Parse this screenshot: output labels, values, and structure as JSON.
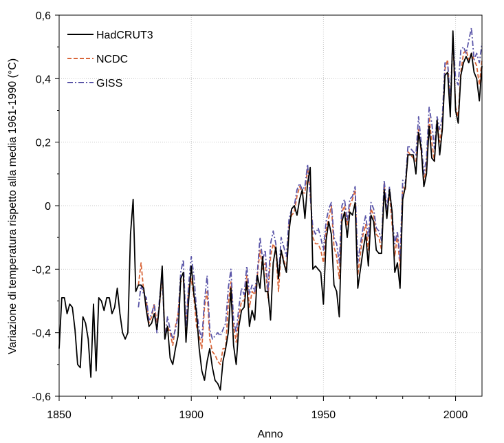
{
  "chart_data": {
    "type": "line",
    "title": "",
    "xlabel": "Anno",
    "ylabel": "Variazione di temperatura rispetto alla media 1961-1990 (°C)",
    "xlim": [
      1850,
      2010
    ],
    "ylim": [
      -0.6,
      0.6
    ],
    "x_ticks": [
      1850,
      1900,
      1950,
      2000
    ],
    "x_tick_labels": [
      "1850",
      "1900",
      "1950",
      "2000"
    ],
    "y_ticks": [
      -0.6,
      -0.4,
      -0.2,
      0,
      0.2,
      0.4,
      0.6
    ],
    "y_tick_labels": [
      "-0,6",
      "-0,4",
      "-0,2",
      "0",
      "0,2",
      "0,4",
      "0,6"
    ],
    "grid": true,
    "legend_position": "top-left",
    "series": [
      {
        "name": "HadCRUT3",
        "color": "#000000",
        "dash": "solid",
        "x_start": 1850,
        "values": [
          -0.45,
          -0.29,
          -0.29,
          -0.34,
          -0.31,
          -0.32,
          -0.39,
          -0.5,
          -0.51,
          -0.35,
          -0.37,
          -0.42,
          -0.54,
          -0.31,
          -0.52,
          -0.29,
          -0.3,
          -0.33,
          -0.29,
          -0.29,
          -0.34,
          -0.32,
          -0.26,
          -0.34,
          -0.4,
          -0.42,
          -0.4,
          -0.09,
          0.02,
          -0.27,
          -0.25,
          -0.25,
          -0.26,
          -0.33,
          -0.38,
          -0.37,
          -0.34,
          -0.39,
          -0.31,
          -0.19,
          -0.42,
          -0.38,
          -0.48,
          -0.5,
          -0.45,
          -0.41,
          -0.23,
          -0.21,
          -0.43,
          -0.3,
          -0.19,
          -0.28,
          -0.34,
          -0.45,
          -0.52,
          -0.55,
          -0.49,
          -0.45,
          -0.51,
          -0.55,
          -0.56,
          -0.58,
          -0.49,
          -0.45,
          -0.4,
          -0.26,
          -0.44,
          -0.5,
          -0.38,
          -0.33,
          -0.32,
          -0.24,
          -0.38,
          -0.33,
          -0.36,
          -0.22,
          -0.26,
          -0.16,
          -0.27,
          -0.27,
          -0.36,
          -0.18,
          -0.13,
          -0.23,
          -0.14,
          -0.18,
          -0.21,
          -0.08,
          -0.01,
          0.0,
          -0.03,
          0.02,
          0.05,
          -0.04,
          0.07,
          0.12,
          -0.2,
          -0.19,
          -0.2,
          -0.21,
          -0.31,
          -0.11,
          -0.05,
          -0.09,
          -0.25,
          -0.27,
          -0.35,
          -0.05,
          -0.02,
          -0.1,
          -0.02,
          -0.03,
          0.01,
          -0.26,
          -0.2,
          -0.14,
          -0.09,
          -0.19,
          -0.03,
          -0.05,
          -0.14,
          -0.15,
          -0.15,
          0.05,
          -0.04,
          0.05,
          -0.02,
          -0.21,
          -0.18,
          -0.26,
          0.02,
          0.06,
          0.16,
          0.16,
          0.16,
          0.1,
          0.23,
          0.18,
          0.06,
          0.1,
          0.25,
          0.15,
          0.14,
          0.27,
          0.16,
          0.24,
          0.41,
          0.42,
          0.28,
          0.55,
          0.3,
          0.26,
          0.41,
          0.45,
          0.47,
          0.45,
          0.48,
          0.42,
          0.4,
          0.33,
          0.44
        ]
      },
      {
        "name": "NCDC",
        "color": "#d9663a",
        "dash": "dashed",
        "x_start": 1880,
        "values": [
          -0.25,
          -0.18,
          -0.27,
          -0.3,
          -0.37,
          -0.35,
          -0.31,
          -0.37,
          -0.31,
          -0.22,
          -0.4,
          -0.38,
          -0.4,
          -0.44,
          -0.38,
          -0.34,
          -0.24,
          -0.23,
          -0.39,
          -0.26,
          -0.23,
          -0.29,
          -0.38,
          -0.41,
          -0.45,
          -0.32,
          -0.27,
          -0.42,
          -0.46,
          -0.47,
          -0.49,
          -0.5,
          -0.45,
          -0.45,
          -0.31,
          -0.24,
          -0.38,
          -0.43,
          -0.35,
          -0.3,
          -0.3,
          -0.22,
          -0.32,
          -0.27,
          -0.28,
          -0.22,
          -0.14,
          -0.2,
          -0.18,
          -0.29,
          -0.16,
          -0.12,
          -0.14,
          -0.27,
          -0.14,
          -0.17,
          -0.2,
          -0.06,
          -0.03,
          -0.02,
          0.03,
          0.06,
          0.04,
          0.04,
          0.12,
          0.04,
          -0.1,
          -0.12,
          -0.12,
          -0.14,
          -0.18,
          -0.08,
          -0.04,
          0.0,
          -0.13,
          -0.16,
          -0.23,
          -0.02,
          0.0,
          -0.06,
          0.0,
          0.02,
          0.05,
          -0.22,
          -0.15,
          -0.09,
          -0.06,
          -0.14,
          -0.01,
          -0.03,
          -0.09,
          -0.1,
          -0.14,
          0.07,
          -0.03,
          0.04,
          -0.06,
          -0.16,
          -0.09,
          -0.2,
          0.06,
          0.05,
          0.17,
          0.16,
          0.15,
          0.14,
          0.24,
          0.17,
          0.08,
          0.12,
          0.28,
          0.2,
          0.14,
          0.27,
          0.2,
          0.25,
          0.43,
          0.46,
          0.3,
          0.53,
          0.31,
          0.28,
          0.42,
          0.48,
          0.49,
          0.46,
          0.48,
          0.46,
          0.44,
          0.38,
          0.46
        ]
      },
      {
        "name": "GISS",
        "color": "#5a55a8",
        "dash": "dashdot",
        "x_start": 1880,
        "values": [
          -0.32,
          -0.25,
          -0.28,
          -0.29,
          -0.36,
          -0.34,
          -0.31,
          -0.4,
          -0.29,
          -0.22,
          -0.42,
          -0.35,
          -0.39,
          -0.42,
          -0.39,
          -0.35,
          -0.21,
          -0.17,
          -0.38,
          -0.25,
          -0.16,
          -0.22,
          -0.33,
          -0.39,
          -0.42,
          -0.3,
          -0.22,
          -0.39,
          -0.42,
          -0.41,
          -0.4,
          -0.41,
          -0.39,
          -0.37,
          -0.26,
          -0.2,
          -0.36,
          -0.4,
          -0.32,
          -0.26,
          -0.28,
          -0.19,
          -0.28,
          -0.25,
          -0.27,
          -0.21,
          -0.1,
          -0.17,
          -0.14,
          -0.27,
          -0.12,
          -0.08,
          -0.12,
          -0.23,
          -0.1,
          -0.13,
          -0.16,
          -0.04,
          -0.01,
          0.0,
          0.05,
          0.07,
          0.05,
          0.06,
          0.13,
          0.03,
          -0.07,
          -0.09,
          -0.07,
          -0.1,
          -0.14,
          -0.05,
          -0.01,
          0.01,
          -0.1,
          -0.12,
          -0.18,
          0.0,
          0.02,
          -0.05,
          0.02,
          0.03,
          0.06,
          -0.18,
          -0.12,
          -0.07,
          -0.03,
          -0.1,
          0.01,
          -0.01,
          -0.07,
          -0.08,
          -0.11,
          0.08,
          -0.01,
          0.06,
          -0.03,
          -0.12,
          -0.08,
          -0.17,
          0.08,
          0.07,
          0.19,
          0.18,
          0.17,
          0.16,
          0.28,
          0.2,
          0.1,
          0.15,
          0.31,
          0.26,
          0.18,
          0.28,
          0.24,
          0.28,
          0.45,
          0.45,
          0.33,
          0.53,
          0.4,
          0.38,
          0.49,
          0.5,
          0.48,
          0.52,
          0.56,
          0.46,
          0.48,
          0.45,
          0.51
        ]
      }
    ]
  }
}
